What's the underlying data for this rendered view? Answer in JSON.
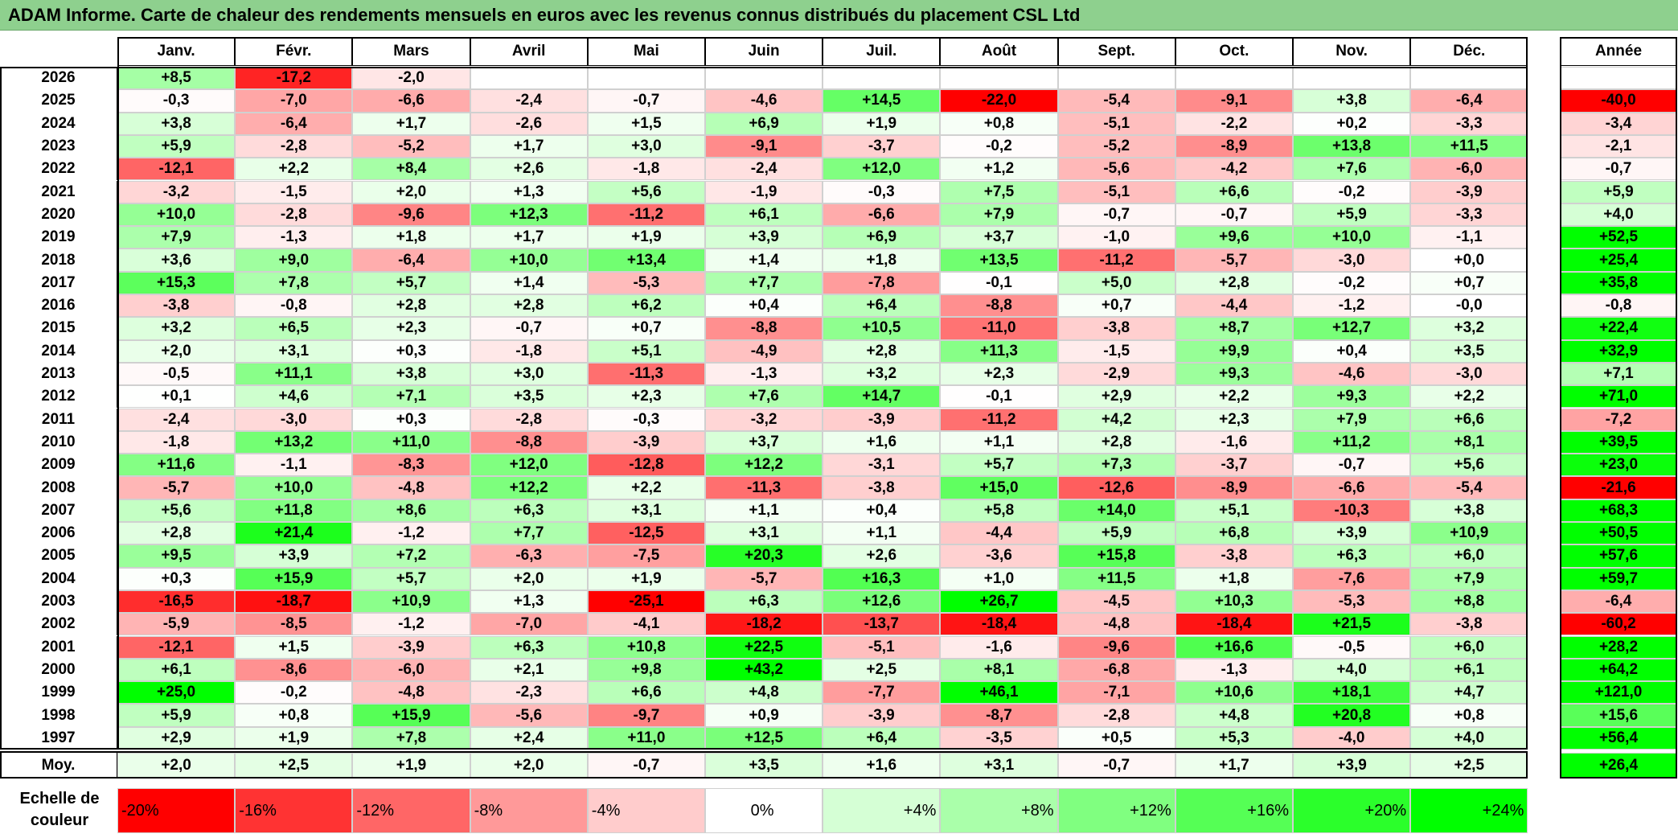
{
  "title": "ADAM Informe. Carte de chaleur des rendements mensuels en euros avec les revenus connus distribués du placement CSL Ltd",
  "chart_data": {
    "type": "heatmap",
    "title": "ADAM Informe. Carte de chaleur des rendements mensuels en euros avec les revenus connus distribués du placement CSL Ltd",
    "months": [
      "Janv.",
      "Févr.",
      "Mars",
      "Avril",
      "Mai",
      "Juin",
      "Juil.",
      "Août",
      "Sept.",
      "Oct.",
      "Nov.",
      "Déc."
    ],
    "year_column_label": "Année",
    "rows": [
      {
        "year": "2026",
        "months": [
          "+8,5",
          "-17,2",
          "-2,0",
          "",
          "",
          "",
          "",
          "",
          "",
          "",
          "",
          ""
        ],
        "annual": ""
      },
      {
        "year": "2025",
        "months": [
          "-0,3",
          "-7,0",
          "-6,6",
          "-2,4",
          "-0,7",
          "-4,6",
          "+14,5",
          "-22,0",
          "-5,4",
          "-9,1",
          "+3,8",
          "-6,4"
        ],
        "annual": "-40,0"
      },
      {
        "year": "2024",
        "months": [
          "+3,8",
          "-6,4",
          "+1,7",
          "-2,6",
          "+1,5",
          "+6,9",
          "+1,9",
          "+0,8",
          "-5,1",
          "-2,2",
          "+0,2",
          "-3,3"
        ],
        "annual": "-3,4"
      },
      {
        "year": "2023",
        "months": [
          "+5,9",
          "-2,8",
          "-5,2",
          "+1,7",
          "+3,0",
          "-9,1",
          "-3,7",
          "-0,2",
          "-5,2",
          "-8,9",
          "+13,8",
          "+11,5"
        ],
        "annual": "-2,1"
      },
      {
        "year": "2022",
        "months": [
          "-12,1",
          "+2,2",
          "+8,4",
          "+2,6",
          "-1,8",
          "-2,4",
          "+12,0",
          "+1,2",
          "-5,6",
          "-4,2",
          "+7,6",
          "-6,0"
        ],
        "annual": "-0,7"
      },
      {
        "year": "2021",
        "months": [
          "-3,2",
          "-1,5",
          "+2,0",
          "+1,3",
          "+5,6",
          "-1,9",
          "-0,3",
          "+7,5",
          "-5,1",
          "+6,6",
          "-0,2",
          "-3,9"
        ],
        "annual": "+5,9"
      },
      {
        "year": "2020",
        "months": [
          "+10,0",
          "-2,8",
          "-9,6",
          "+12,3",
          "-11,2",
          "+6,1",
          "-6,6",
          "+7,9",
          "-0,7",
          "-0,7",
          "+5,9",
          "-3,3"
        ],
        "annual": "+4,0"
      },
      {
        "year": "2019",
        "months": [
          "+7,9",
          "-1,3",
          "+1,8",
          "+1,7",
          "+1,9",
          "+3,9",
          "+6,9",
          "+3,7",
          "-1,0",
          "+9,6",
          "+10,0",
          "-1,1"
        ],
        "annual": "+52,5"
      },
      {
        "year": "2018",
        "months": [
          "+3,6",
          "+9,0",
          "-6,4",
          "+10,0",
          "+13,4",
          "+1,4",
          "+1,8",
          "+13,5",
          "-11,2",
          "-5,7",
          "-3,0",
          "+0,0"
        ],
        "annual": "+25,4"
      },
      {
        "year": "2017",
        "months": [
          "+15,3",
          "+7,8",
          "+5,7",
          "+1,4",
          "-5,3",
          "+7,7",
          "-7,8",
          "-0,1",
          "+5,0",
          "+2,8",
          "-0,2",
          "+0,7"
        ],
        "annual": "+35,8"
      },
      {
        "year": "2016",
        "months": [
          "-3,8",
          "-0,8",
          "+2,8",
          "+2,8",
          "+6,2",
          "+0,4",
          "+6,4",
          "-8,8",
          "+0,7",
          "-4,4",
          "-1,2",
          "-0,0"
        ],
        "annual": "-0,8"
      },
      {
        "year": "2015",
        "months": [
          "+3,2",
          "+6,5",
          "+2,3",
          "-0,7",
          "+0,7",
          "-8,8",
          "+10,5",
          "-11,0",
          "-3,8",
          "+8,7",
          "+12,7",
          "+3,2"
        ],
        "annual": "+22,4"
      },
      {
        "year": "2014",
        "months": [
          "+2,0",
          "+3,1",
          "+0,3",
          "-1,8",
          "+5,1",
          "-4,9",
          "+2,8",
          "+11,3",
          "-1,5",
          "+9,9",
          "+0,4",
          "+3,5"
        ],
        "annual": "+32,9"
      },
      {
        "year": "2013",
        "months": [
          "-0,5",
          "+11,1",
          "+3,8",
          "+3,0",
          "-11,3",
          "-1,3",
          "+3,2",
          "+2,3",
          "-2,9",
          "+9,3",
          "-4,6",
          "-3,0"
        ],
        "annual": "+7,1"
      },
      {
        "year": "2012",
        "months": [
          "+0,1",
          "+4,6",
          "+7,1",
          "+3,5",
          "+2,3",
          "+7,6",
          "+14,7",
          "-0,1",
          "+2,9",
          "+2,2",
          "+9,3",
          "+2,2"
        ],
        "annual": "+71,0"
      },
      {
        "year": "2011",
        "months": [
          "-2,4",
          "-3,0",
          "+0,3",
          "-2,8",
          "-0,3",
          "-3,2",
          "-3,9",
          "-11,2",
          "+4,2",
          "+2,3",
          "+7,9",
          "+6,6"
        ],
        "annual": "-7,2"
      },
      {
        "year": "2010",
        "months": [
          "-1,8",
          "+13,2",
          "+11,0",
          "-8,8",
          "-3,9",
          "+3,7",
          "+1,6",
          "+1,1",
          "+2,8",
          "-1,6",
          "+11,2",
          "+8,1"
        ],
        "annual": "+39,5"
      },
      {
        "year": "2009",
        "months": [
          "+11,6",
          "-1,1",
          "-8,3",
          "+12,0",
          "-12,8",
          "+12,2",
          "-3,1",
          "+5,7",
          "+7,3",
          "-3,7",
          "-0,7",
          "+5,6"
        ],
        "annual": "+23,0"
      },
      {
        "year": "2008",
        "months": [
          "-5,7",
          "+10,0",
          "-4,8",
          "+12,2",
          "+2,2",
          "-11,3",
          "-3,8",
          "+15,0",
          "-12,6",
          "-8,9",
          "-6,6",
          "-5,4"
        ],
        "annual": "-21,6"
      },
      {
        "year": "2007",
        "months": [
          "+5,6",
          "+11,8",
          "+8,6",
          "+6,3",
          "+3,1",
          "+1,1",
          "+0,4",
          "+5,8",
          "+14,0",
          "+5,1",
          "-10,3",
          "+3,8"
        ],
        "annual": "+68,3"
      },
      {
        "year": "2006",
        "months": [
          "+2,8",
          "+21,4",
          "-1,2",
          "+7,7",
          "-12,5",
          "+3,1",
          "+1,1",
          "-4,4",
          "+5,9",
          "+6,8",
          "+3,9",
          "+10,9"
        ],
        "annual": "+50,5"
      },
      {
        "year": "2005",
        "months": [
          "+9,5",
          "+3,9",
          "+7,2",
          "-6,3",
          "-7,5",
          "+20,3",
          "+2,6",
          "-3,6",
          "+15,8",
          "-3,8",
          "+6,3",
          "+6,0"
        ],
        "annual": "+57,6"
      },
      {
        "year": "2004",
        "months": [
          "+0,3",
          "+15,9",
          "+5,7",
          "+2,0",
          "+1,9",
          "-5,7",
          "+16,3",
          "+1,0",
          "+11,5",
          "+1,8",
          "-7,6",
          "+7,9"
        ],
        "annual": "+59,7"
      },
      {
        "year": "2003",
        "months": [
          "-16,5",
          "-18,7",
          "+10,9",
          "+1,3",
          "-25,1",
          "+6,3",
          "+12,6",
          "+26,7",
          "-4,5",
          "+10,3",
          "-5,3",
          "+8,8"
        ],
        "annual": "-6,4"
      },
      {
        "year": "2002",
        "months": [
          "-5,9",
          "-8,5",
          "-1,2",
          "-7,0",
          "-4,1",
          "-18,2",
          "-13,7",
          "-18,4",
          "-4,8",
          "-18,4",
          "+21,5",
          "-3,8"
        ],
        "annual": "-60,2"
      },
      {
        "year": "2001",
        "months": [
          "-12,1",
          "+1,5",
          "-3,9",
          "+6,3",
          "+10,8",
          "+22,5",
          "-5,1",
          "-1,6",
          "-9,6",
          "+16,6",
          "-0,5",
          "+6,0"
        ],
        "annual": "+28,2"
      },
      {
        "year": "2000",
        "months": [
          "+6,1",
          "-8,6",
          "-6,0",
          "+2,1",
          "+9,8",
          "+43,2",
          "+2,5",
          "+8,1",
          "-6,8",
          "-1,3",
          "+4,0",
          "+6,1"
        ],
        "annual": "+64,2"
      },
      {
        "year": "1999",
        "months": [
          "+25,0",
          "-0,2",
          "-4,8",
          "-2,3",
          "+6,6",
          "+4,8",
          "-7,7",
          "+46,1",
          "-7,1",
          "+10,6",
          "+18,1",
          "+4,7"
        ],
        "annual": "+121,0"
      },
      {
        "year": "1998",
        "months": [
          "+5,9",
          "+0,8",
          "+15,9",
          "-5,6",
          "-9,7",
          "+0,9",
          "-3,9",
          "-8,7",
          "-2,8",
          "+4,8",
          "+20,8",
          "+0,8"
        ],
        "annual": "+15,6"
      },
      {
        "year": "1997",
        "months": [
          "+2,9",
          "+1,9",
          "+7,8",
          "+2,4",
          "+11,0",
          "+12,5",
          "+6,4",
          "-3,5",
          "+0,5",
          "+5,3",
          "-4,0",
          "+4,0"
        ],
        "annual": "+56,4"
      }
    ],
    "average_row": {
      "label": "Moy.",
      "months": [
        "+2,0",
        "+2,5",
        "+1,9",
        "+2,0",
        "-0,7",
        "+3,5",
        "+1,6",
        "+3,1",
        "-0,7",
        "+1,7",
        "+3,9",
        "+2,5"
      ],
      "annual": "+26,4"
    },
    "color_scale": {
      "label": "Echelle de couleur",
      "steps": [
        "-20%",
        "-16%",
        "-12%",
        "-8%",
        "-4%",
        "0%",
        "+4%",
        "+8%",
        "+12%",
        "+16%",
        "+20%",
        "+24%"
      ],
      "negative_color": "#ff0000",
      "neutral_color": "#ffffff",
      "positive_color": "#00ff00"
    }
  }
}
